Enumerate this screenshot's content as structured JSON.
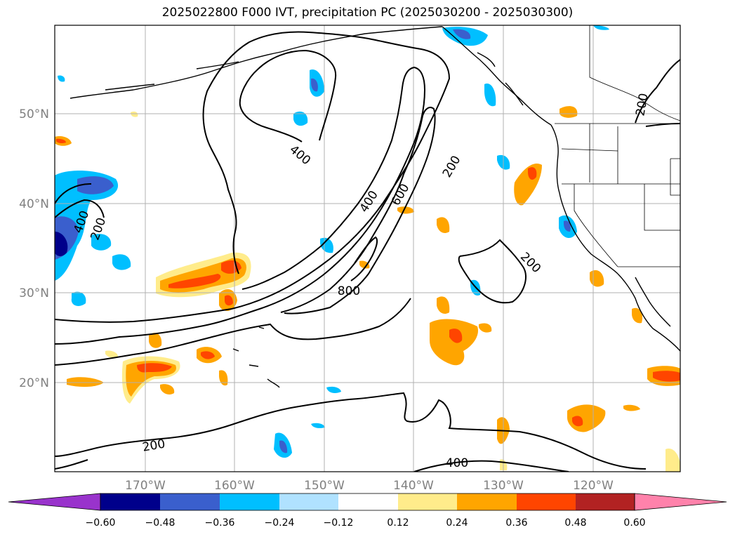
{
  "title": "2025022800 F000 IVT, precipitation PC (2025030200 - 2025030300)",
  "map": {
    "lon_labels": [
      "170°W",
      "160°W",
      "150°W",
      "140°W",
      "130°W",
      "120°W"
    ],
    "lat_labels": [
      "50°N",
      "40°N",
      "30°N",
      "20°N"
    ],
    "contour_labels": [
      "400",
      "200",
      "400",
      "400",
      "600",
      "200",
      "200",
      "800",
      "200",
      "400",
      "200"
    ]
  },
  "colorbar": {
    "ticks": [
      "−0.60",
      "−0.48",
      "−0.36",
      "−0.24",
      "−0.12",
      "0.12",
      "0.24",
      "0.36",
      "0.48",
      "0.60"
    ],
    "colors": [
      "#9933cc",
      "#00008b",
      "#3a5fcd",
      "#00bfff",
      "#b0e2ff",
      "#ffffff",
      "#ffec8b",
      "#ffa500",
      "#ff4500",
      "#b22222",
      "#ff82ab"
    ]
  }
}
